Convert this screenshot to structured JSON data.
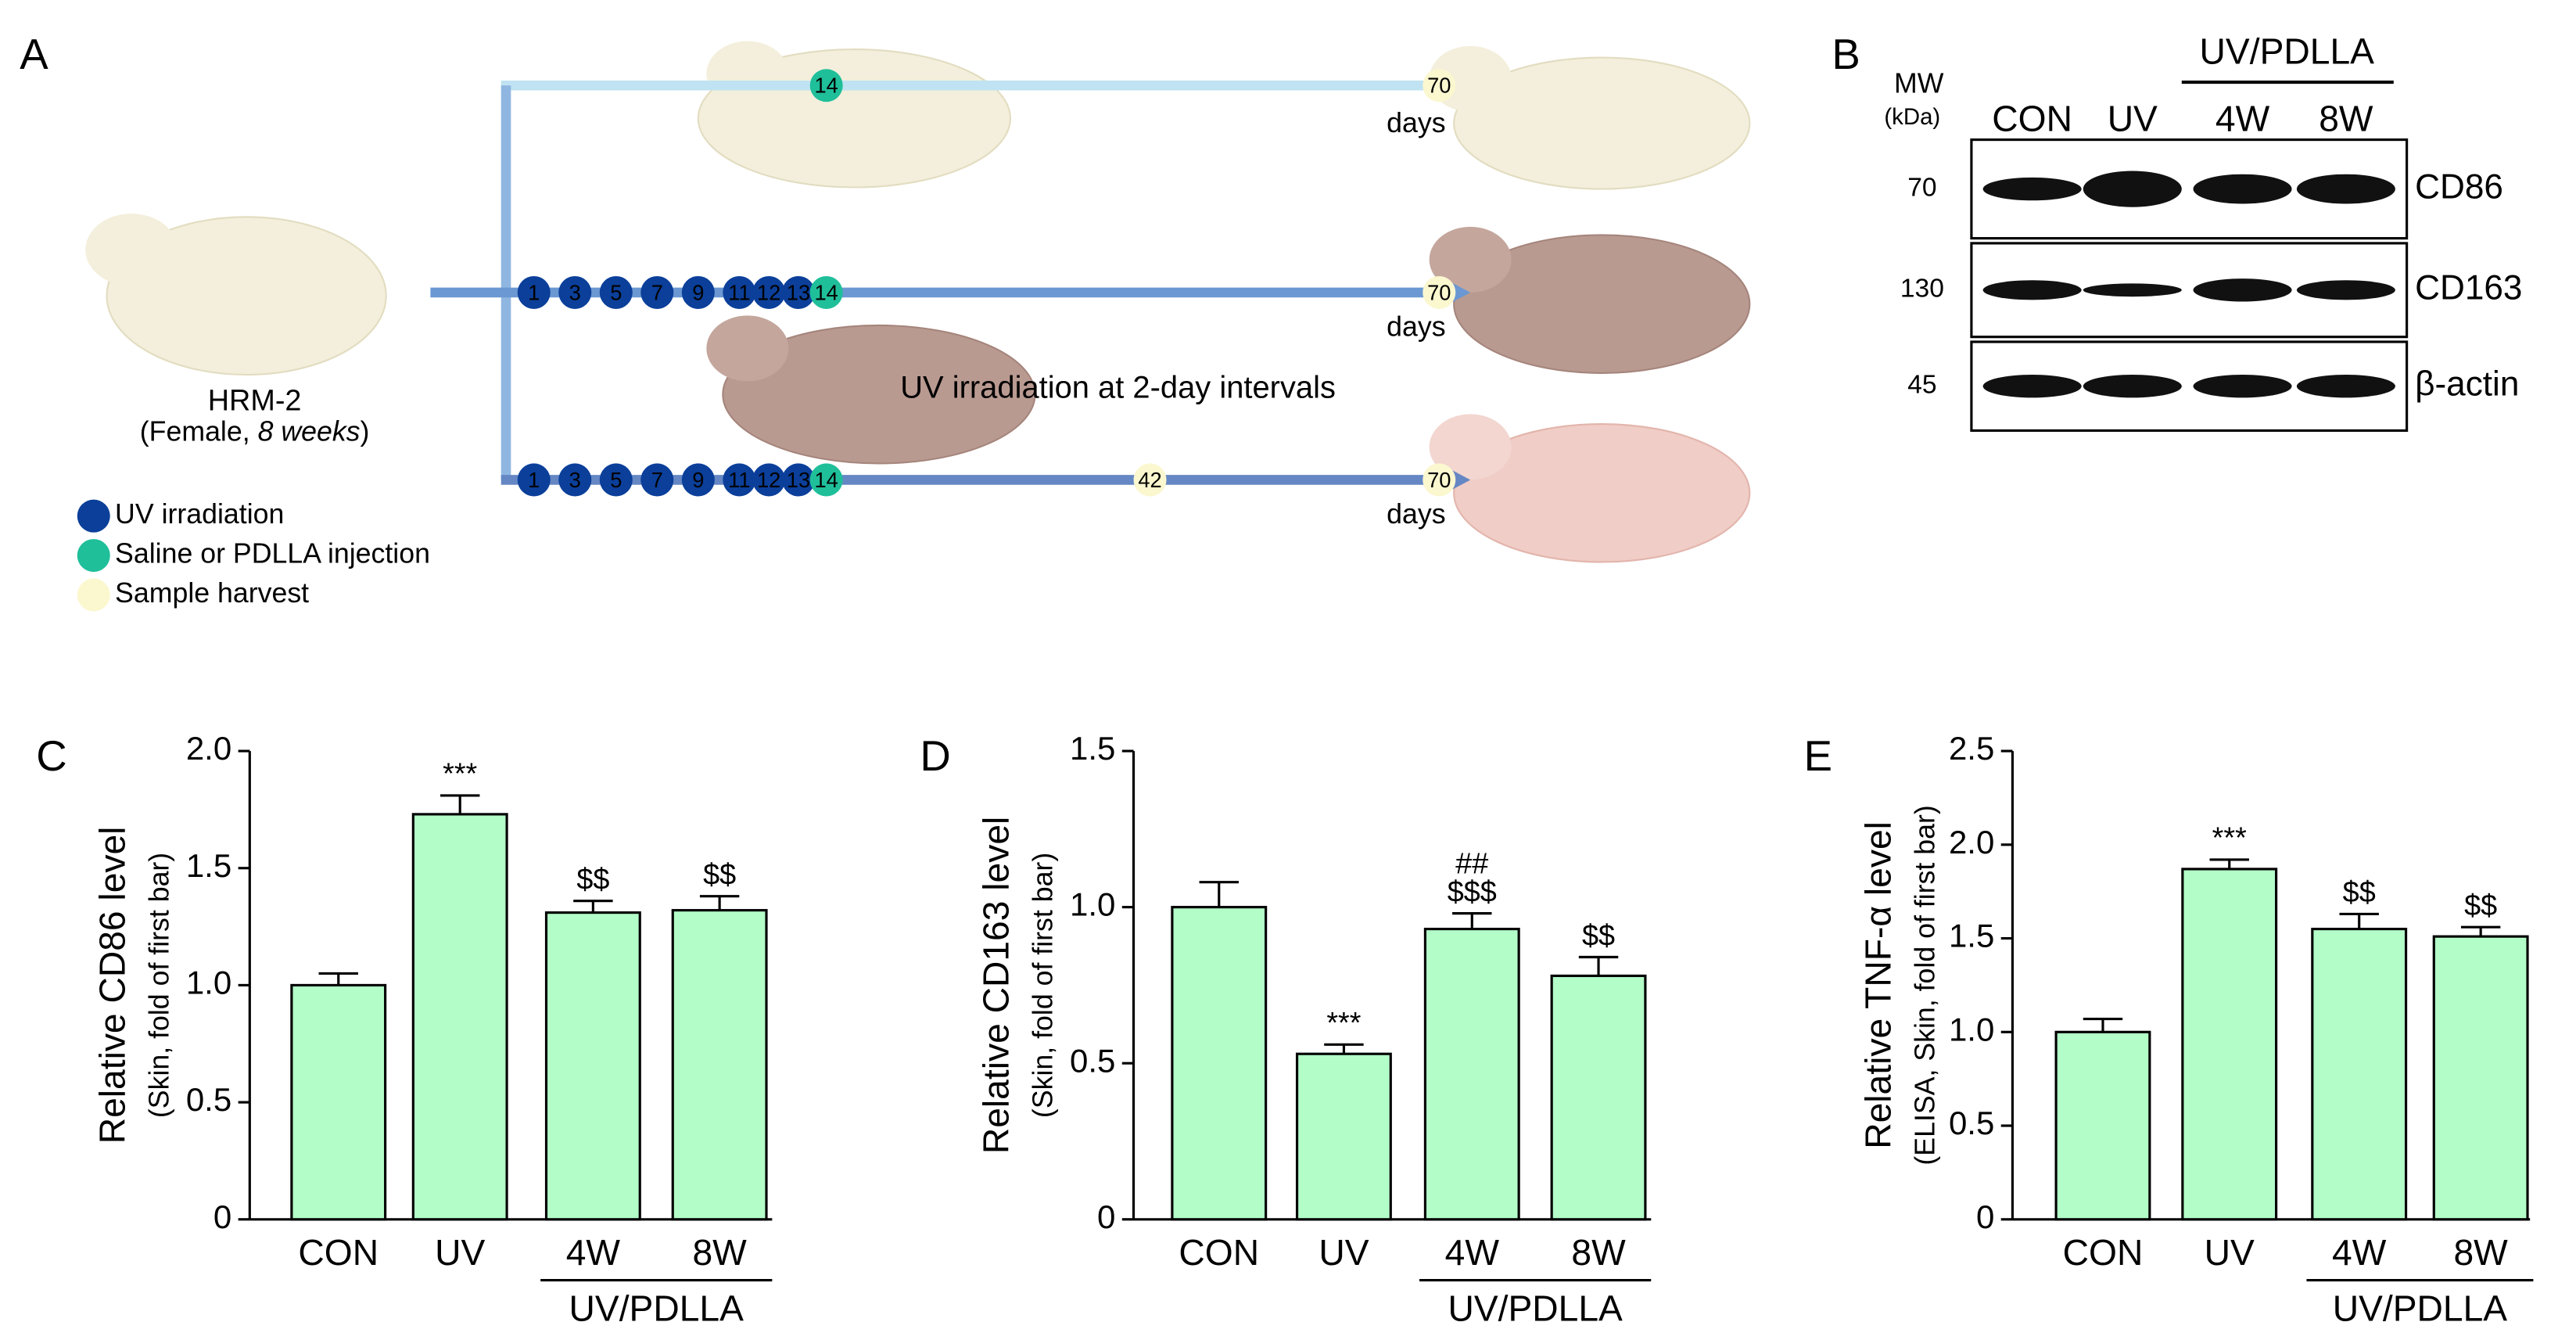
{
  "panel_a": {
    "label": "A",
    "mouse": "HRM-2",
    "mouse_info": [
      "(Female, ",
      "8 weeks",
      ")"
    ],
    "top_line": {
      "injection_day": 14,
      "end_day": 70,
      "unit": "days"
    },
    "middle_line": {
      "uv_days": [
        1,
        3,
        5,
        7,
        9,
        11,
        12,
        13
      ],
      "injection_day": 14,
      "end_day": 70,
      "unit": "days",
      "caption": "UV irradiation at 2-day intervals"
    },
    "bottom_line": {
      "uv_days": [
        1,
        3,
        5,
        7,
        9,
        11,
        12,
        13
      ],
      "injection_day": 14,
      "harvest_day": 42,
      "end_day": 70,
      "unit": "days"
    },
    "legend": [
      {
        "name": "UV irradiation",
        "color": "#0b3f9a"
      },
      {
        "name": "Saline or PDLLA injection",
        "color": "#1fbf9a"
      },
      {
        "name": "Sample harvest",
        "color": "#fbf7cf"
      }
    ]
  },
  "panel_b": {
    "label": "B",
    "mw_title": "MW",
    "mw_unit": "(kDa)",
    "group_label": "UV/PDLLA",
    "lanes": [
      "CON",
      "UV",
      "4W",
      "8W"
    ],
    "rows": [
      {
        "mw": 70,
        "name": "CD86"
      },
      {
        "mw": 130,
        "name": "CD163"
      },
      {
        "mw": 45,
        "name": "β-actin"
      }
    ]
  },
  "chart_data": [
    {
      "type": "bar",
      "panel": "C",
      "ylabel": "Relative CD86 level",
      "ylabel_sub": "(Skin, fold of first bar)",
      "categories": [
        "CON",
        "UV",
        "4W",
        "8W"
      ],
      "group_label": "UV/PDLLA",
      "values": [
        1.0,
        1.73,
        1.31,
        1.32
      ],
      "errors": [
        0.05,
        0.08,
        0.05,
        0.06
      ],
      "annotations": [
        null,
        [
          "***"
        ],
        [
          "$$"
        ],
        [
          "$$"
        ]
      ],
      "color": "#b3fdc8",
      "ylim": [
        0,
        2
      ],
      "yticks": [
        0,
        0.5,
        {
          "value": 1,
          "label": "1.0"
        },
        1.5,
        {
          "value": 2,
          "label": "2.0"
        }
      ]
    },
    {
      "type": "bar",
      "panel": "D",
      "ylabel": "Relative CD163 level",
      "ylabel_sub": "(Skin, fold of first bar)",
      "categories": [
        "CON",
        "UV",
        "4W",
        "8W"
      ],
      "group_label": "UV/PDLLA",
      "values": [
        1.0,
        0.53,
        0.93,
        0.78
      ],
      "errors": [
        0.08,
        0.03,
        0.05,
        0.06
      ],
      "annotations": [
        null,
        [
          "***"
        ],
        [
          "##",
          "$$$"
        ],
        [
          "$$"
        ]
      ],
      "color": "#b3fdc8",
      "ylim": [
        0,
        1.5
      ],
      "yticks": [
        0,
        0.5,
        {
          "value": 1,
          "label": "1.0"
        },
        1.5
      ]
    },
    {
      "type": "bar",
      "panel": "E",
      "ylabel": "Relative TNF-α level",
      "ylabel_sub": "(ELISA, Skin, fold of first bar)",
      "categories": [
        "CON",
        "UV",
        "4W",
        "8W"
      ],
      "group_label": "UV/PDLLA",
      "values": [
        1.0,
        1.87,
        1.55,
        1.51
      ],
      "errors": [
        0.07,
        0.05,
        0.08,
        0.05
      ],
      "annotations": [
        null,
        [
          "***"
        ],
        [
          "$$"
        ],
        [
          "$$"
        ]
      ],
      "color": "#b3fdc8",
      "ylim": [
        0,
        2.5
      ],
      "yticks": [
        0,
        0.5,
        {
          "value": 1,
          "label": "1.0"
        },
        1.5,
        {
          "value": 2,
          "label": "2.0"
        },
        2.5
      ]
    }
  ]
}
